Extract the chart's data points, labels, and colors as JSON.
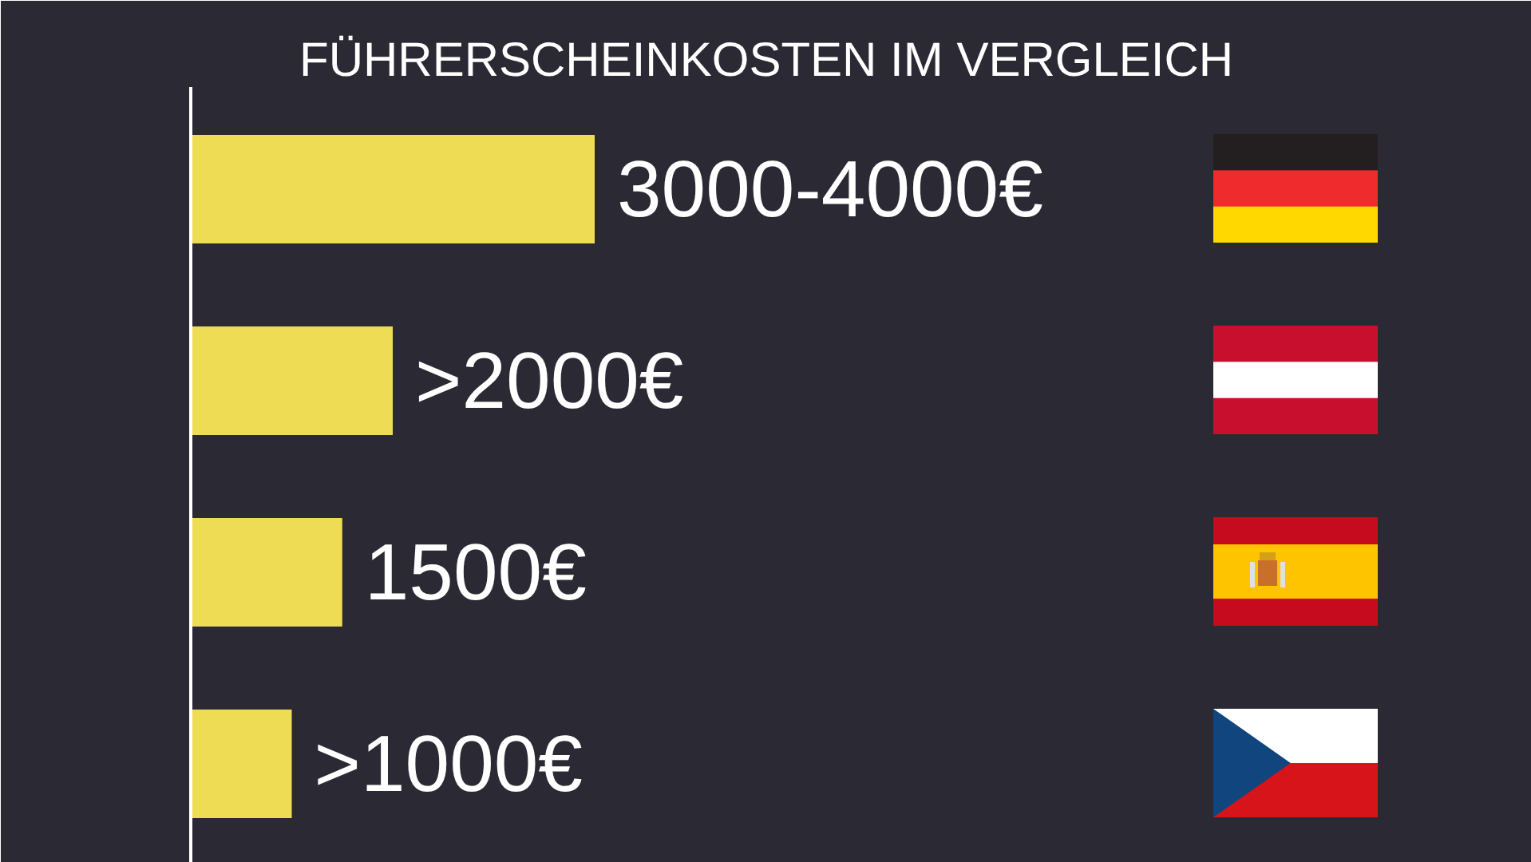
{
  "chart_data": {
    "type": "bar",
    "orientation": "horizontal",
    "title": "FÜHRERSCHEINKOSTEN IM VERGLEICH",
    "categories": [
      null,
      null,
      null,
      null
    ],
    "values": [
      4000,
      2000,
      1500,
      1000
    ],
    "color": "#efdc55",
    "tick_labels": false,
    "value_labels": [
      "3000-4000€",
      ">2000€",
      "1500€",
      ">1000€"
    ]
  }
}
